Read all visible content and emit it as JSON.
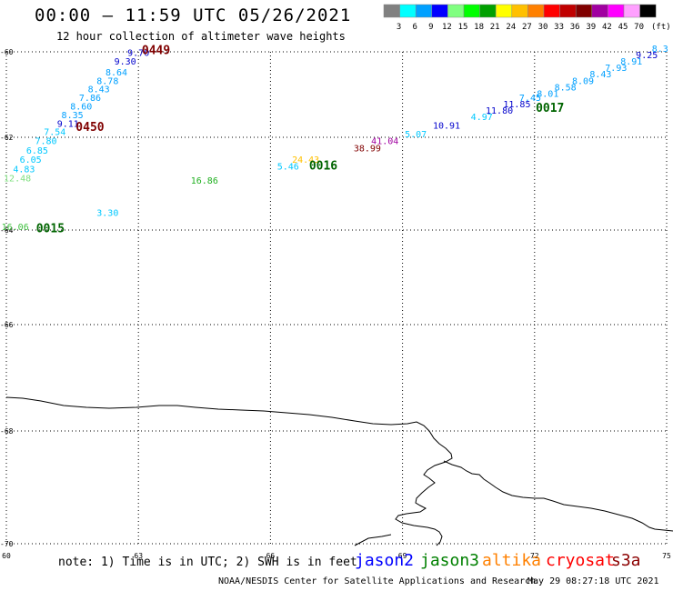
{
  "header": {
    "title": "00:00 – 11:59 UTC 05/26/2021",
    "subtitle": "12 hour collection of altimeter wave heights"
  },
  "legend": {
    "unit": "(ft)",
    "entries": [
      {
        "label": "3",
        "color": "#808080"
      },
      {
        "label": "6",
        "color": "#00ffff"
      },
      {
        "label": "9",
        "color": "#00a0ff"
      },
      {
        "label": "12",
        "color": "#0000ff"
      },
      {
        "label": "15",
        "color": "#80ff80"
      },
      {
        "label": "18",
        "color": "#00ff00"
      },
      {
        "label": "21",
        "color": "#00a000"
      },
      {
        "label": "24",
        "color": "#ffff00"
      },
      {
        "label": "27",
        "color": "#ffc000"
      },
      {
        "label": "30",
        "color": "#ff8000"
      },
      {
        "label": "33",
        "color": "#ff0000"
      },
      {
        "label": "36",
        "color": "#c00000"
      },
      {
        "label": "39",
        "color": "#800000"
      },
      {
        "label": "42",
        "color": "#a000a0"
      },
      {
        "label": "45",
        "color": "#ff00ff"
      },
      {
        "label": "70",
        "color": "#ffa0ff"
      },
      {
        "label": "",
        "color": "#000000"
      }
    ]
  },
  "map": {
    "lon_range": [
      60,
      75
    ],
    "lat_range": [
      -70,
      -60
    ],
    "lon_ticks": [
      "60",
      "63",
      "66",
      "69",
      "72",
      "75"
    ],
    "lat_ticks": [
      "-60",
      "-62",
      "-64",
      "-66",
      "-68",
      "-70"
    ],
    "grid": "dotted"
  },
  "observations": [
    {
      "text": "9.70",
      "lon": 63.0,
      "lat": -60.1,
      "color": "#0000cc"
    },
    {
      "text": "9.30",
      "lon": 62.7,
      "lat": -60.3,
      "color": "#0000cc"
    },
    {
      "text": "8.64",
      "lon": 62.5,
      "lat": -60.55,
      "color": "#00a0ff"
    },
    {
      "text": "8.78",
      "lon": 62.3,
      "lat": -60.75,
      "color": "#00a0ff"
    },
    {
      "text": "8.43",
      "lon": 62.1,
      "lat": -60.95,
      "color": "#00a0ff"
    },
    {
      "text": "7.86",
      "lon": 61.9,
      "lat": -61.15,
      "color": "#00a0ff"
    },
    {
      "text": "8.60",
      "lon": 61.7,
      "lat": -61.35,
      "color": "#00a0ff"
    },
    {
      "text": "8.35",
      "lon": 61.5,
      "lat": -61.55,
      "color": "#00a0ff"
    },
    {
      "text": "9.11",
      "lon": 61.4,
      "lat": -61.75,
      "color": "#0000cc"
    },
    {
      "text": "7.54",
      "lon": 61.1,
      "lat": -61.95,
      "color": "#00c8ff"
    },
    {
      "text": "7.80",
      "lon": 60.9,
      "lat": -62.15,
      "color": "#00c8ff"
    },
    {
      "text": "6.85",
      "lon": 60.7,
      "lat": -62.35,
      "color": "#00c8ff"
    },
    {
      "text": "6.05",
      "lon": 60.55,
      "lat": -62.55,
      "color": "#00c8ff"
    },
    {
      "text": "4.83",
      "lon": 60.4,
      "lat": -62.75,
      "color": "#00c8ff"
    },
    {
      "text": "12.48",
      "lon": 60.25,
      "lat": -62.95,
      "color": "#80e080"
    },
    {
      "text": "3.30",
      "lon": 62.3,
      "lat": -63.7,
      "color": "#00c8ff"
    },
    {
      "text": "16.06",
      "lon": 60.2,
      "lat": -64.0,
      "color": "#40c040"
    },
    {
      "text": "16.86",
      "lon": 64.5,
      "lat": -63.0,
      "color": "#20b020"
    },
    {
      "text": "5.46",
      "lon": 66.4,
      "lat": -62.7,
      "color": "#00c8ff"
    },
    {
      "text": "24.43",
      "lon": 66.8,
      "lat": -62.55,
      "color": "#ffc000"
    },
    {
      "text": "38.99",
      "lon": 68.2,
      "lat": -62.3,
      "color": "#800000"
    },
    {
      "text": "41.04",
      "lon": 68.6,
      "lat": -62.15,
      "color": "#a000a0"
    },
    {
      "text": "5.07",
      "lon": 69.3,
      "lat": -62.0,
      "color": "#00c8ff"
    },
    {
      "text": "10.91",
      "lon": 70.0,
      "lat": -61.8,
      "color": "#0000cc"
    },
    {
      "text": "4.97",
      "lon": 70.8,
      "lat": -61.6,
      "color": "#00c8ff"
    },
    {
      "text": "11.80",
      "lon": 71.2,
      "lat": -61.45,
      "color": "#0000cc"
    },
    {
      "text": "11.85",
      "lon": 71.6,
      "lat": -61.3,
      "color": "#0000cc"
    },
    {
      "text": "7.45",
      "lon": 71.9,
      "lat": -61.15,
      "color": "#00a0ff"
    },
    {
      "text": "8.01",
      "lon": 72.3,
      "lat": -61.05,
      "color": "#00a0ff"
    },
    {
      "text": "8.58",
      "lon": 72.7,
      "lat": -60.9,
      "color": "#00a0ff"
    },
    {
      "text": "8.09",
      "lon": 73.1,
      "lat": -60.75,
      "color": "#00a0ff"
    },
    {
      "text": "8.43",
      "lon": 73.5,
      "lat": -60.6,
      "color": "#00a0ff"
    },
    {
      "text": "7.93",
      "lon": 73.85,
      "lat": -60.45,
      "color": "#00a0ff"
    },
    {
      "text": "8.91",
      "lon": 74.2,
      "lat": -60.3,
      "color": "#00a0ff"
    },
    {
      "text": "9.25",
      "lon": 74.55,
      "lat": -60.15,
      "color": "#0000cc"
    },
    {
      "text": "8.3",
      "lon": 74.85,
      "lat": -60.0,
      "color": "#00a0ff"
    }
  ],
  "pass_times": [
    {
      "text": "0449",
      "lon": 63.4,
      "lat": -60.05,
      "color": "#800000"
    },
    {
      "text": "0450",
      "lon": 61.9,
      "lat": -61.85,
      "color": "#800000"
    },
    {
      "text": "0015",
      "lon": 61.0,
      "lat": -64.05,
      "color": "#006400"
    },
    {
      "text": "0016",
      "lon": 67.2,
      "lat": -62.7,
      "color": "#006400"
    },
    {
      "text": "0017",
      "lon": 72.35,
      "lat": -61.4,
      "color": "#006400"
    }
  ],
  "note": "note: 1) Time is in UTC; 2) SWH is in feet",
  "satellites": [
    {
      "name": "jason2",
      "color": "#0000ff"
    },
    {
      "name": "jason3",
      "color": "#008000"
    },
    {
      "name": "altika",
      "color": "#ff8000"
    },
    {
      "name": "cryosat",
      "color": "#ff0000"
    },
    {
      "name": "s3a",
      "color": "#8b0000"
    }
  ],
  "footer": {
    "source": "NOAA/NESDIS Center for Satellite Applications and Research",
    "timestamp": "May 29 08:27:18 UTC 2021"
  }
}
